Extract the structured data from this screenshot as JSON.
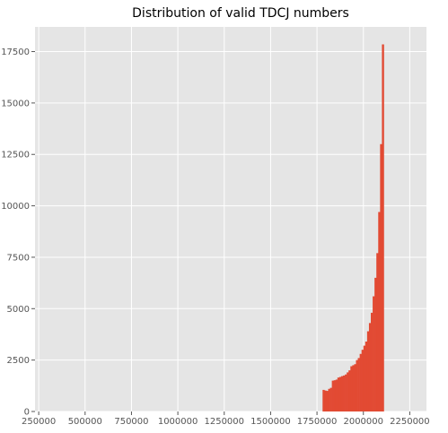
{
  "chart_data": {
    "type": "histogram",
    "title": "Distribution of valid TDCJ numbers",
    "xlabel": "",
    "ylabel": "",
    "xlim": [
      230000,
      2340000
    ],
    "ylim": [
      0,
      18700
    ],
    "grid": true,
    "legend": "none",
    "style": {
      "background": "#E5E5E5",
      "bar_color": "#E24A33",
      "grid_color": "#FFFFFF"
    },
    "x_ticks": [
      250000,
      500000,
      750000,
      1000000,
      1250000,
      1500000,
      1750000,
      2000000,
      2250000
    ],
    "x_tick_labels": [
      "250000",
      "500000",
      "750000",
      "1000000",
      "1250000",
      "1500000",
      "1750000",
      "2000000",
      "2250000"
    ],
    "y_ticks": [
      0,
      2500,
      5000,
      7500,
      10000,
      12500,
      15000,
      17500
    ],
    "y_tick_labels": [
      "0",
      "2500",
      "5000",
      "7500",
      "10000",
      "12500",
      "15000",
      "17500"
    ],
    "bins": [
      {
        "x0": 1780000,
        "x1": 1790000,
        "count": 1050
      },
      {
        "x0": 1790000,
        "x1": 1800000,
        "count": 1020
      },
      {
        "x0": 1800000,
        "x1": 1810000,
        "count": 1000
      },
      {
        "x0": 1810000,
        "x1": 1820000,
        "count": 1100
      },
      {
        "x0": 1820000,
        "x1": 1830000,
        "count": 1150
      },
      {
        "x0": 1830000,
        "x1": 1840000,
        "count": 1500
      },
      {
        "x0": 1840000,
        "x1": 1850000,
        "count": 1520
      },
      {
        "x0": 1850000,
        "x1": 1860000,
        "count": 1550
      },
      {
        "x0": 1860000,
        "x1": 1870000,
        "count": 1650
      },
      {
        "x0": 1870000,
        "x1": 1880000,
        "count": 1680
      },
      {
        "x0": 1880000,
        "x1": 1890000,
        "count": 1720
      },
      {
        "x0": 1890000,
        "x1": 1900000,
        "count": 1750
      },
      {
        "x0": 1900000,
        "x1": 1910000,
        "count": 1800
      },
      {
        "x0": 1910000,
        "x1": 1920000,
        "count": 1900
      },
      {
        "x0": 1920000,
        "x1": 1930000,
        "count": 2000
      },
      {
        "x0": 1930000,
        "x1": 1940000,
        "count": 2200
      },
      {
        "x0": 1940000,
        "x1": 1950000,
        "count": 2250
      },
      {
        "x0": 1950000,
        "x1": 1960000,
        "count": 2300
      },
      {
        "x0": 1960000,
        "x1": 1970000,
        "count": 2500
      },
      {
        "x0": 1970000,
        "x1": 1980000,
        "count": 2600
      },
      {
        "x0": 1980000,
        "x1": 1990000,
        "count": 2800
      },
      {
        "x0": 1990000,
        "x1": 2000000,
        "count": 3000
      },
      {
        "x0": 2000000,
        "x1": 2010000,
        "count": 3200
      },
      {
        "x0": 2010000,
        "x1": 2020000,
        "count": 3400
      },
      {
        "x0": 2020000,
        "x1": 2030000,
        "count": 3900
      },
      {
        "x0": 2030000,
        "x1": 2040000,
        "count": 4300
      },
      {
        "x0": 2040000,
        "x1": 2050000,
        "count": 4800
      },
      {
        "x0": 2050000,
        "x1": 2060000,
        "count": 5600
      },
      {
        "x0": 2060000,
        "x1": 2070000,
        "count": 6500
      },
      {
        "x0": 2070000,
        "x1": 2080000,
        "count": 7700
      },
      {
        "x0": 2080000,
        "x1": 2090000,
        "count": 9700
      },
      {
        "x0": 2090000,
        "x1": 2100000,
        "count": 13000
      },
      {
        "x0": 2100000,
        "x1": 2110000,
        "count": 17850
      }
    ]
  }
}
